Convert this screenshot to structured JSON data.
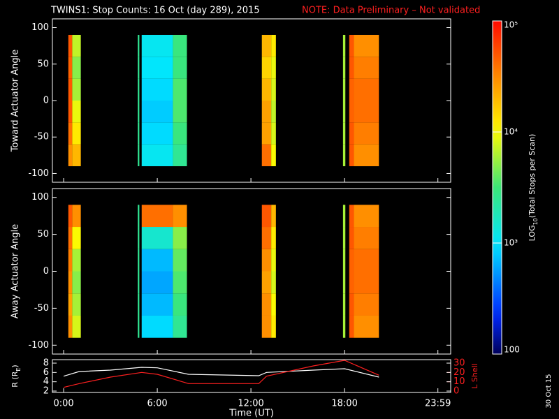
{
  "title": "TWINS1: Stop Counts: 16 Oct (day 289), 2015",
  "note": "NOTE: Data Preliminary – Not validated",
  "date_stamp": "30 Oct 15",
  "colorbar": {
    "label": [
      "LOG",
      "10",
      "(Total Stops per Scan)"
    ],
    "scale": "log",
    "zlim": [
      100,
      100000
    ],
    "ticks": [
      100,
      {
        "value": 1000,
        "label": "10³"
      },
      {
        "value": 10000,
        "label": "10⁴"
      },
      {
        "value": 100000,
        "label": "10⁵"
      }
    ]
  },
  "chart_data": [
    {
      "type": "heatmap",
      "ylabel": "Toward Actuator Angle",
      "xlim": [
        -0.72,
        24.8
      ],
      "ylim": [
        -112,
        112
      ],
      "yticks": [
        -100,
        -50,
        0,
        50,
        100
      ],
      "angle_bins": [
        -90,
        -60,
        -30,
        0,
        30,
        60,
        90
      ],
      "segments": [
        {
          "start": 0.3,
          "end": 0.55,
          "values": [
            30000,
            40000,
            50000,
            50000,
            45000,
            50000
          ]
        },
        {
          "start": 0.55,
          "end": 1.1,
          "values": [
            20000,
            12000,
            9000,
            6000,
            5000,
            7000
          ]
        },
        {
          "start": 4.75,
          "end": 4.85,
          "values": [
            2500,
            2500,
            2500,
            2500,
            2500,
            2500
          ]
        },
        {
          "start": 5.0,
          "end": 7.0,
          "values": [
            1100,
            900,
            800,
            900,
            1000,
            1100
          ]
        },
        {
          "start": 7.0,
          "end": 7.9,
          "values": [
            2500,
            3000,
            3500,
            3500,
            3000,
            3000
          ]
        },
        {
          "start": 12.7,
          "end": 13.3,
          "values": [
            40000,
            25000,
            25000,
            20000,
            15000,
            20000
          ]
        },
        {
          "start": 13.3,
          "end": 13.6,
          "values": [
            10000,
            8000,
            7000,
            8000,
            9000,
            12000
          ]
        },
        {
          "start": 17.9,
          "end": 18.05,
          "values": [
            6000,
            6000,
            6000,
            6000,
            6000,
            6000
          ]
        },
        {
          "start": 18.3,
          "end": 18.6,
          "values": [
            50000,
            50000,
            45000,
            45000,
            50000,
            50000
          ]
        },
        {
          "start": 18.6,
          "end": 20.2,
          "values": [
            30000,
            35000,
            40000,
            40000,
            35000,
            30000
          ]
        }
      ]
    },
    {
      "type": "heatmap",
      "ylabel": "Away Actuator Angle",
      "xlim": [
        -0.72,
        24.8
      ],
      "ylim": [
        -112,
        112
      ],
      "yticks": [
        -100,
        -50,
        0,
        50,
        100
      ],
      "angle_bins": [
        -90,
        -60,
        -30,
        0,
        30,
        60,
        90
      ],
      "segments": [
        {
          "start": 0.3,
          "end": 0.55,
          "values": [
            30000,
            25000,
            30000,
            35000,
            40000,
            50000
          ]
        },
        {
          "start": 0.55,
          "end": 1.1,
          "values": [
            8000,
            6000,
            5000,
            6000,
            10000,
            30000
          ]
        },
        {
          "start": 4.75,
          "end": 4.85,
          "values": [
            2500,
            2500,
            2500,
            2500,
            2500,
            2500
          ]
        },
        {
          "start": 5.0,
          "end": 7.0,
          "values": [
            900,
            700,
            600,
            700,
            1500,
            40000
          ]
        },
        {
          "start": 7.0,
          "end": 7.9,
          "values": [
            2500,
            3000,
            3500,
            4000,
            5000,
            30000
          ]
        },
        {
          "start": 12.7,
          "end": 13.3,
          "values": [
            30000,
            30000,
            25000,
            30000,
            40000,
            50000
          ]
        },
        {
          "start": 13.3,
          "end": 13.6,
          "values": [
            12000,
            10000,
            8000,
            9000,
            12000,
            20000
          ]
        },
        {
          "start": 17.9,
          "end": 18.05,
          "values": [
            6000,
            6000,
            6000,
            6000,
            6000,
            6000
          ]
        },
        {
          "start": 18.3,
          "end": 18.6,
          "values": [
            50000,
            50000,
            45000,
            45000,
            50000,
            50000
          ]
        },
        {
          "start": 18.6,
          "end": 20.2,
          "values": [
            30000,
            35000,
            40000,
            40000,
            35000,
            30000
          ]
        }
      ]
    },
    {
      "type": "line",
      "xlabel": "Time (UT)",
      "ylabel": [
        "R (R",
        "E",
        ")"
      ],
      "y2label": "L Shell",
      "xlim": [
        -0.72,
        24.8
      ],
      "ylim": [
        1.7,
        8.75
      ],
      "yticks": [
        2,
        4,
        6,
        8
      ],
      "y2lim": [
        -1.5,
        33.75
      ],
      "y2ticks": [
        0,
        10,
        20,
        30
      ],
      "xticks": [
        {
          "value": 0,
          "label": "0:00"
        },
        {
          "value": 6,
          "label": "6:00"
        },
        {
          "value": 12,
          "label": "12:00"
        },
        {
          "value": 18,
          "label": "18:00"
        },
        {
          "value": 23.98,
          "label": "23:59"
        }
      ],
      "x": [
        0,
        1,
        3,
        5,
        6,
        8,
        12.5,
        13,
        16,
        18,
        20.2
      ],
      "series": [
        {
          "color": "#ffffff",
          "values": [
            5.2,
            6.2,
            6.5,
            7.1,
            7.0,
            5.6,
            5.3,
            6.0,
            6.5,
            6.8,
            5.0
          ]
        },
        {
          "color": "#ff2020",
          "axis": "y2",
          "values": [
            4,
            8,
            15,
            20,
            18,
            8,
            8,
            16,
            27,
            33,
            17
          ]
        }
      ]
    }
  ]
}
